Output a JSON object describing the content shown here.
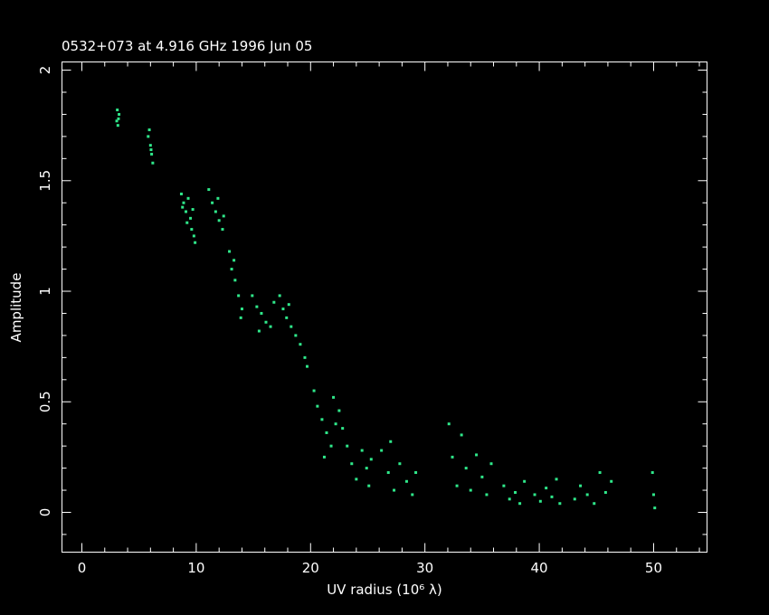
{
  "chart_data": {
    "type": "scatter",
    "title": "0532+073 at 4.916 GHz 1996 Jun 05",
    "x_label": "UV radius  (10⁶ λ)",
    "y_label": "Amplitude",
    "color": "#2fe88a",
    "xlim": [
      -1.74,
      54.67
    ],
    "ylim": [
      -0.18,
      2.037
    ],
    "xticks": [
      0,
      10,
      20,
      30,
      40,
      50
    ],
    "yticks": [
      0,
      0.5,
      1,
      1.5,
      2
    ],
    "xminorticks": [
      2,
      4,
      6,
      8,
      12,
      14,
      16,
      18,
      22,
      24,
      26,
      28,
      32,
      34,
      36,
      38,
      42,
      44,
      46,
      48,
      52,
      54
    ],
    "yminorticks": [
      -0.1,
      0.1,
      0.2,
      0.3,
      0.4,
      0.6,
      0.7,
      0.8,
      0.9,
      1.1,
      1.2,
      1.3,
      1.4,
      1.6,
      1.7,
      1.8,
      1.9
    ],
    "x": [
      3.1,
      3.2,
      3.15,
      3.25,
      3.05,
      5.8,
      6.0,
      6.1,
      6.2,
      5.9,
      6.05,
      8.7,
      8.9,
      9.1,
      9.3,
      9.5,
      9.6,
      9.8,
      9.9,
      9.2,
      8.8,
      9.7,
      11.1,
      11.4,
      11.7,
      12.0,
      12.3,
      11.9,
      12.4,
      12.9,
      13.1,
      13.4,
      13.7,
      14.0,
      13.9,
      13.3,
      14.9,
      15.3,
      15.7,
      16.1,
      16.5,
      16.8,
      15.5,
      17.3,
      17.6,
      17.9,
      18.3,
      18.7,
      19.1,
      19.5,
      19.7,
      18.1,
      20.3,
      20.6,
      21.0,
      21.4,
      21.8,
      22.2,
      22.5,
      22.8,
      21.2,
      22.0,
      23.2,
      23.6,
      24.0,
      24.5,
      24.9,
      25.3,
      25.1,
      26.2,
      26.8,
      27.3,
      27.8,
      28.4,
      28.9,
      29.2,
      27.0,
      32.1,
      32.4,
      32.8,
      33.2,
      33.6,
      34.0,
      34.5,
      35.0,
      35.4,
      35.8,
      36.9,
      37.4,
      37.9,
      38.3,
      38.7,
      39.6,
      40.1,
      40.6,
      41.1,
      41.5,
      41.8,
      43.1,
      43.6,
      44.2,
      44.8,
      45.3,
      45.8,
      46.3,
      49.9,
      50.0,
      50.1
    ],
    "values": [
      1.82,
      1.78,
      1.75,
      1.8,
      1.77,
      1.7,
      1.66,
      1.62,
      1.58,
      1.73,
      1.64,
      1.44,
      1.4,
      1.36,
      1.42,
      1.33,
      1.28,
      1.25,
      1.22,
      1.31,
      1.38,
      1.37,
      1.46,
      1.4,
      1.36,
      1.32,
      1.28,
      1.42,
      1.34,
      1.18,
      1.1,
      1.05,
      0.98,
      0.92,
      0.88,
      1.14,
      0.98,
      0.93,
      0.9,
      0.86,
      0.84,
      0.95,
      0.82,
      0.98,
      0.92,
      0.88,
      0.84,
      0.8,
      0.76,
      0.7,
      0.66,
      0.94,
      0.55,
      0.48,
      0.42,
      0.36,
      0.3,
      0.4,
      0.46,
      0.38,
      0.25,
      0.52,
      0.3,
      0.22,
      0.15,
      0.28,
      0.2,
      0.24,
      0.12,
      0.28,
      0.18,
      0.1,
      0.22,
      0.14,
      0.08,
      0.18,
      0.32,
      0.4,
      0.25,
      0.12,
      0.35,
      0.2,
      0.1,
      0.26,
      0.16,
      0.08,
      0.22,
      0.12,
      0.06,
      0.09,
      0.04,
      0.14,
      0.08,
      0.05,
      0.11,
      0.07,
      0.15,
      0.04,
      0.06,
      0.12,
      0.08,
      0.04,
      0.18,
      0.09,
      0.14,
      0.18,
      0.08,
      0.02
    ]
  }
}
